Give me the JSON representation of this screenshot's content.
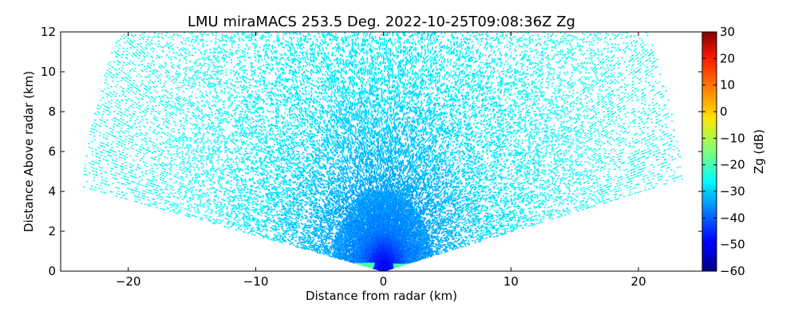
{
  "chart_data": {
    "type": "heatmap",
    "title": "LMU miraMACS 253.5 Deg. 2022-10-25T09:08:36Z  Zg",
    "xlabel": "Distance from radar (km)",
    "ylabel": "Distance Above radar  (km)",
    "xlim": [
      -25.3,
      25
    ],
    "ylim": [
      0,
      12
    ],
    "x_ticks": [
      -20,
      -10,
      0,
      10,
      20
    ],
    "x_tick_labels": [
      "−20",
      "−10",
      "0",
      "10",
      "20"
    ],
    "y_ticks": [
      0,
      2,
      4,
      6,
      8,
      10,
      12
    ],
    "y_tick_labels": [
      "0",
      "2",
      "4",
      "6",
      "8",
      "10",
      "12"
    ],
    "colorbar": {
      "label": "Zg (dB)",
      "range": [
        -60,
        30
      ],
      "colormap": "jet",
      "ticks": [
        -60,
        -50,
        -40,
        -30,
        -20,
        -10,
        0,
        10,
        20,
        30
      ],
      "tick_labels": [
        "−60",
        "−50",
        "−40",
        "−30",
        "−20",
        "−10",
        "0",
        "10",
        "20",
        "30"
      ]
    },
    "scan": {
      "left_edge_elevation_deg": 170,
      "right_edge_elevation_deg": 11,
      "max_range_km": 24
    },
    "reflectivity_profile": [
      {
        "distance_km": 0.5,
        "zg_db": -48
      },
      {
        "distance_km": 2,
        "zg_db": -38
      },
      {
        "distance_km": 5,
        "zg_db": -33
      },
      {
        "distance_km": 10,
        "zg_db": -28
      },
      {
        "distance_km": 20,
        "zg_db": -25
      }
    ],
    "near_surface_band": {
      "distance_km": 3,
      "zg_db": -20
    },
    "grid": false
  }
}
